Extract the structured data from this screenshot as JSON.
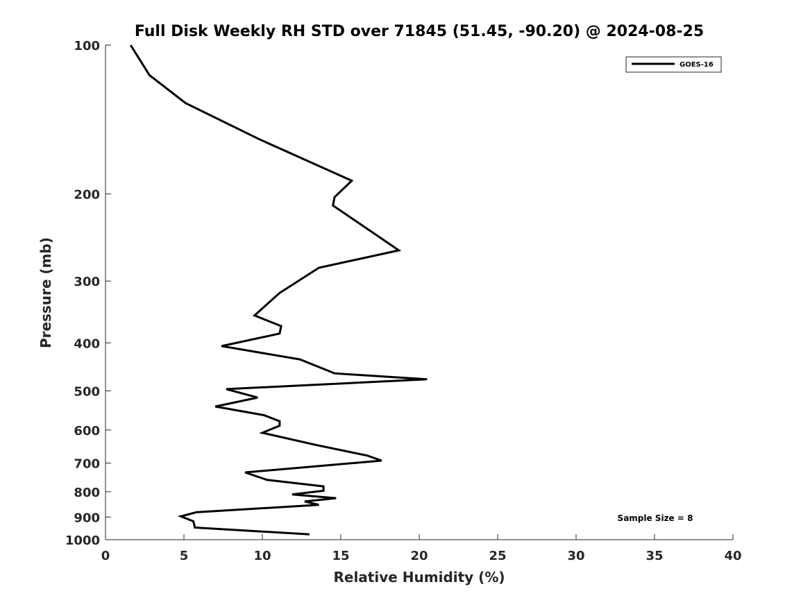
{
  "chart_data": {
    "type": "line",
    "title": "Full Disk Weekly RH STD over 71845 (51.45, -90.20) @ 2024-08-25",
    "xlabel": "Relative Humidity (%)",
    "ylabel": "Pressure (mb)",
    "xlim": [
      0,
      40
    ],
    "ylim": [
      1000,
      100
    ],
    "yscale": "log",
    "xticks": [
      0,
      5,
      10,
      15,
      20,
      25,
      30,
      35,
      40
    ],
    "yticks": [
      100,
      200,
      300,
      400,
      500,
      600,
      700,
      800,
      900,
      1000
    ],
    "grid": false,
    "legend_position": "top-right",
    "series": [
      {
        "name": "GOES-16",
        "color": "#000000",
        "x": [
          1.6,
          2.8,
          5.1,
          9.8,
          15.7,
          14.6,
          14.5,
          18.7,
          13.6,
          11.1,
          9.5,
          11.2,
          11.1,
          7.4,
          12.4,
          14.6,
          20.5,
          7.7,
          9.7,
          7.0,
          10.1,
          11.1,
          11.1,
          10.0,
          13.4,
          16.7,
          17.6,
          8.9,
          10.3,
          13.9,
          13.9,
          11.9,
          14.7,
          12.7,
          13.6,
          5.8,
          4.8,
          5.6,
          5.7,
          13.0
        ],
        "y": [
          100,
          115,
          131,
          155,
          188,
          203,
          211,
          260,
          282,
          317,
          352,
          370,
          383,
          406,
          432,
          461,
          474,
          496,
          516,
          538,
          560,
          576,
          588,
          608,
          643,
          676,
          692,
          731,
          757,
          780,
          796,
          810,
          824,
          837,
          850,
          880,
          897,
          918,
          945,
          975
        ]
      }
    ],
    "annotations": [
      "Sample Size = 8"
    ]
  }
}
